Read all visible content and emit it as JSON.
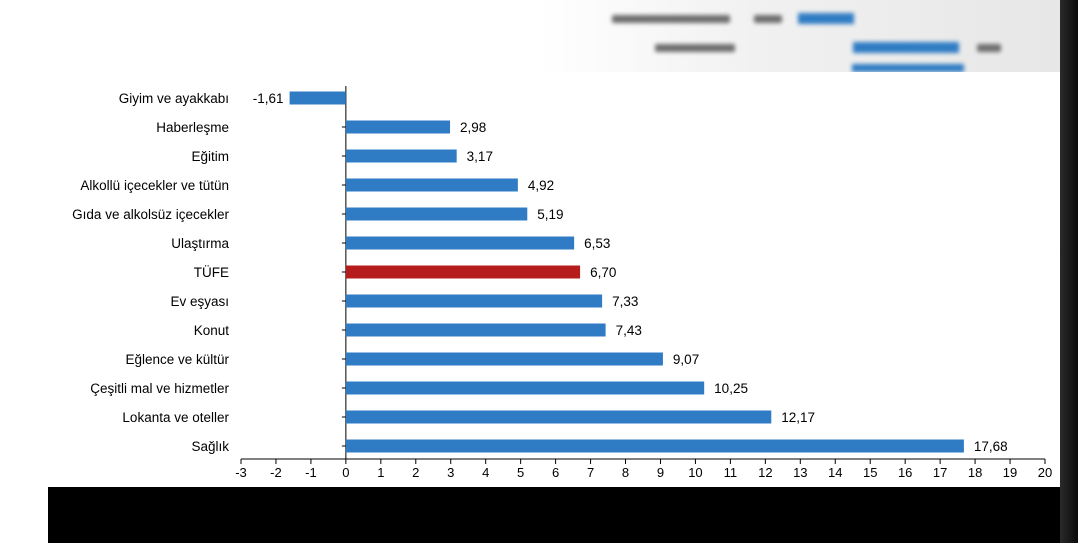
{
  "chart_data": {
    "type": "bar",
    "orientation": "horizontal",
    "title": "",
    "xlabel": "",
    "ylabel": "",
    "xlim": [
      -3,
      20
    ],
    "x_ticks": [
      "-3",
      "-2",
      "-1",
      "0",
      "1",
      "2",
      "3",
      "4",
      "5",
      "6",
      "7",
      "8",
      "9",
      "10",
      "11",
      "12",
      "13",
      "14",
      "15",
      "16",
      "17",
      "18",
      "19",
      "20"
    ],
    "grid": false,
    "legend": "none",
    "categories": [
      "Giyim ve ayakkabı",
      "Haberleşme",
      "Eğitim",
      "Alkollü içecekler ve tütün",
      "Gıda ve alkolsüz içecekler",
      "Ulaştırma",
      "TÜFE",
      "Ev eşyası",
      "Konut",
      "Eğlence ve kültür",
      "Çeşitli mal ve hizmetler",
      "Lokanta ve oteller",
      "Sağlık"
    ],
    "values": [
      -1.61,
      2.98,
      3.17,
      4.92,
      5.19,
      6.53,
      6.7,
      7.33,
      7.43,
      9.07,
      10.25,
      12.17,
      17.68
    ],
    "value_labels": [
      "-1,61",
      "2,98",
      "3,17",
      "4,92",
      "5,19",
      "6,53",
      "6,70",
      "7,33",
      "7,43",
      "9,07",
      "10,25",
      "12,17",
      "17,68"
    ],
    "highlight_category": "TÜFE",
    "colors": {
      "bar": "#2f7cc4",
      "highlight": "#b71c1c",
      "axis": "#000000",
      "text": "#000000"
    }
  }
}
